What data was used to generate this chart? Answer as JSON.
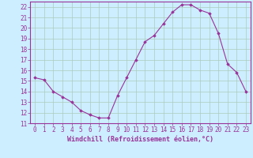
{
  "x": [
    0,
    1,
    2,
    3,
    4,
    5,
    6,
    7,
    8,
    9,
    10,
    11,
    12,
    13,
    14,
    15,
    16,
    17,
    18,
    19,
    20,
    21,
    22,
    23
  ],
  "y": [
    15.3,
    15.1,
    14.0,
    13.5,
    13.0,
    12.2,
    11.8,
    11.5,
    11.5,
    13.6,
    15.3,
    17.0,
    18.7,
    19.3,
    20.4,
    21.5,
    22.2,
    22.2,
    21.7,
    21.4,
    19.5,
    16.6,
    15.8,
    14.0
  ],
  "xlabel": "Windchill (Refroidissement éolien,°C)",
  "color": "#993399",
  "bg_color": "#cceeff",
  "grid_color": "#aaccbb",
  "marker": "D",
  "markersize": 1.8,
  "linewidth": 0.8,
  "ylim_min": 11,
  "ylim_max": 22.5,
  "xlim_min": -0.5,
  "xlim_max": 23.5,
  "yticks": [
    11,
    12,
    13,
    14,
    15,
    16,
    17,
    18,
    19,
    20,
    21,
    22
  ],
  "xticks": [
    0,
    1,
    2,
    3,
    4,
    5,
    6,
    7,
    8,
    9,
    10,
    11,
    12,
    13,
    14,
    15,
    16,
    17,
    18,
    19,
    20,
    21,
    22,
    23
  ],
  "tick_fontsize": 5.5,
  "xlabel_fontsize": 6.0,
  "spine_color": "#993399",
  "tick_color": "#993399"
}
